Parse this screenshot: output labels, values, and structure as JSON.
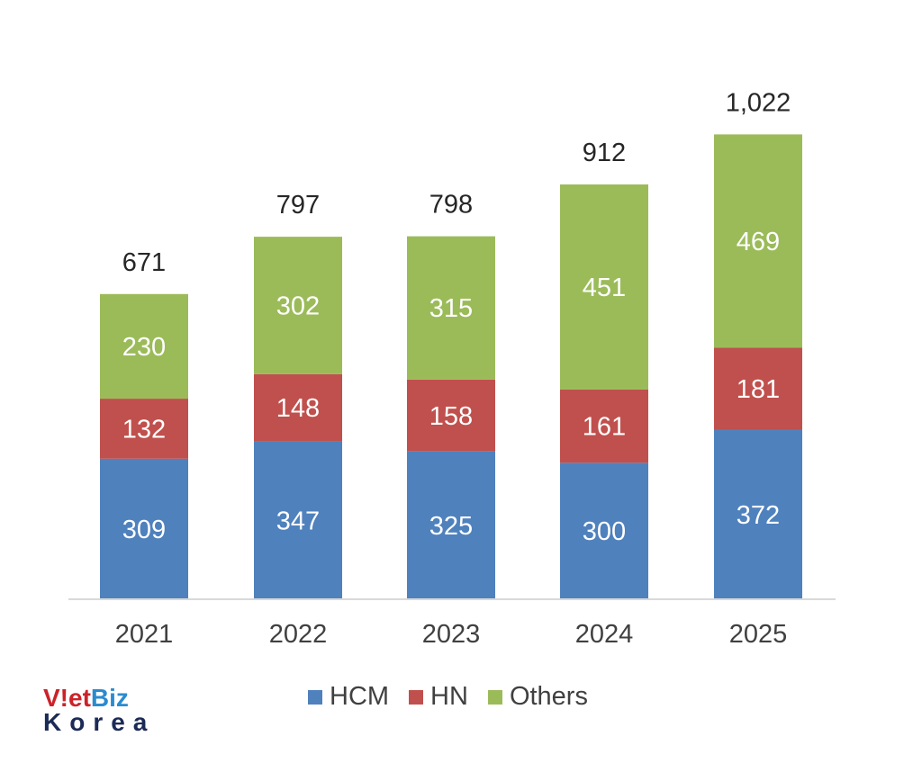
{
  "chart_data": {
    "type": "bar",
    "stacked": true,
    "categories": [
      "2021",
      "2022",
      "2023",
      "2024",
      "2025"
    ],
    "series": [
      {
        "name": "HCM",
        "values": [
          309,
          347,
          325,
          300,
          372
        ],
        "color": "#4f81bd"
      },
      {
        "name": "HN",
        "values": [
          132,
          148,
          158,
          161,
          181
        ],
        "color": "#c0504d"
      },
      {
        "name": "Others",
        "values": [
          230,
          302,
          315,
          451,
          469
        ],
        "color": "#9bbb59"
      }
    ],
    "totals": [
      "671",
      "797",
      "798",
      "912",
      "1,022"
    ],
    "ylim": [
      0,
      1160
    ],
    "legend_position": "bottom",
    "title": "",
    "xlabel": "",
    "ylabel": ""
  },
  "logo": {
    "line1_v": "V!et",
    "line1_biz": "Biz",
    "line2": "Korea"
  }
}
